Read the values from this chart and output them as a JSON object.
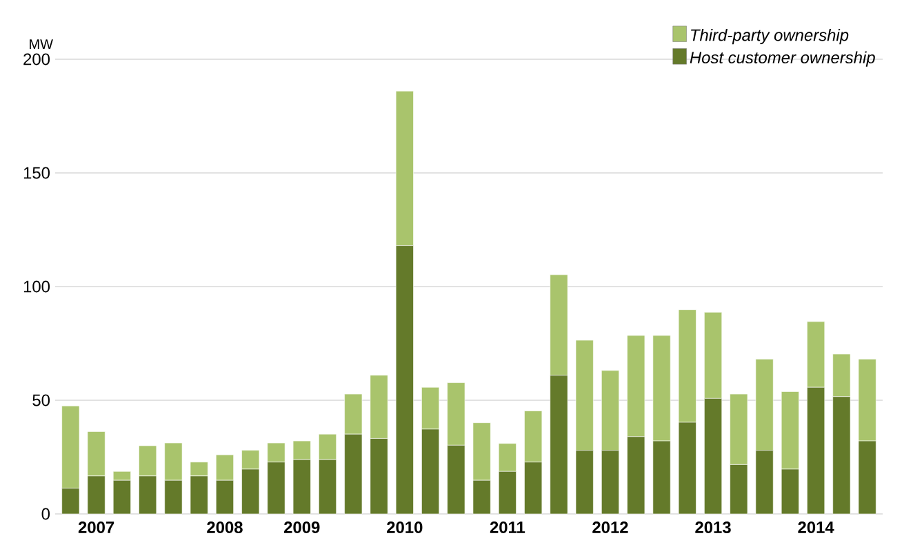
{
  "chart_data": {
    "type": "bar",
    "stacked": true,
    "ylabel": "MW",
    "categories": [
      null,
      "2007",
      null,
      null,
      null,
      null,
      "2008",
      null,
      null,
      "2009",
      null,
      null,
      null,
      "2010",
      null,
      null,
      null,
      "2011",
      null,
      null,
      null,
      "2012",
      null,
      null,
      null,
      "2013",
      null,
      null,
      null,
      "2014",
      null,
      null
    ],
    "series": [
      {
        "name": "Host customer ownership",
        "color": "#647a2a",
        "values": [
          11.3,
          16.7,
          14.8,
          16.7,
          14.8,
          16.7,
          14.8,
          19.7,
          22.8,
          23.9,
          23.9,
          35.1,
          33.2,
          118,
          37.3,
          30.2,
          14.8,
          18.7,
          22.8,
          61,
          28,
          28,
          34,
          32.1,
          40.3,
          50.8,
          21.7,
          28,
          19.7,
          55.7,
          51.6,
          32.1
        ]
      },
      {
        "name": "Third-party ownership",
        "color": "#a9c46c",
        "values": [
          36.2,
          19.5,
          3.9,
          13.3,
          16.4,
          6.1,
          11.2,
          8.3,
          8.4,
          8.2,
          11.2,
          17.6,
          27.8,
          68,
          18.4,
          27.5,
          25.3,
          12.3,
          22.5,
          44.2,
          48.4,
          35.1,
          44.5,
          46.4,
          49.5,
          37.9,
          31,
          40.1,
          34.1,
          28.9,
          18.7,
          36
        ]
      }
    ],
    "ylim": [
      0,
      200
    ],
    "yticks": [
      0,
      50,
      100,
      150,
      200
    ],
    "grid": "y",
    "legend": "top right"
  }
}
